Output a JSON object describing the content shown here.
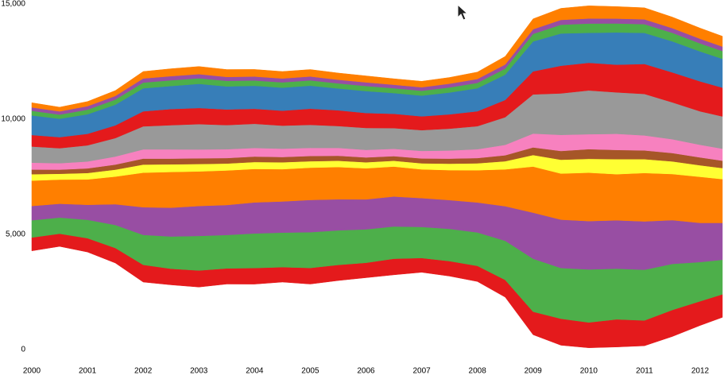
{
  "chart_data": {
    "type": "streamgraph",
    "x": [
      2000,
      2000.5,
      2001,
      2001.5,
      2002,
      2002.5,
      2003,
      2003.5,
      2004,
      2004.5,
      2005,
      2005.5,
      2006,
      2006.5,
      2007,
      2007.5,
      2008,
      2008.5,
      2009,
      2009.5,
      2010,
      2010.5,
      2011,
      2011.5,
      2012,
      2012.4
    ],
    "xlim": [
      2000,
      2012.43
    ],
    "xticks": [
      2000,
      2001,
      2002,
      2003,
      2004,
      2005,
      2006,
      2007,
      2008,
      2009,
      2010,
      2011,
      2012
    ],
    "ylim": [
      0,
      15000
    ],
    "yticks": [
      0,
      {
        "value": 5000,
        "label": "5,000"
      },
      {
        "value": 10000,
        "label": "10,000"
      },
      {
        "value": 15000,
        "label": "15,000"
      }
    ],
    "grid": false,
    "series": [
      {
        "color": "#e41a1c",
        "values": [
          580,
          550,
          600,
          650,
          750,
          700,
          720,
          680,
          700,
          650,
          700,
          680,
          650,
          700,
          620,
          650,
          680,
          750,
          1000,
          1150,
          1100,
          1200,
          1100,
          1150,
          1050,
          1000
        ]
      },
      {
        "color": "#4daf4a",
        "values": [
          750,
          700,
          800,
          1000,
          1300,
          1400,
          1500,
          1450,
          1500,
          1500,
          1550,
          1500,
          1450,
          1400,
          1350,
          1400,
          1450,
          1700,
          2300,
          2200,
          2300,
          2200,
          2200,
          2000,
          1700,
          1500
        ]
      },
      {
        "color": "#984ea3",
        "values": [
          620,
          600,
          650,
          900,
          1200,
          1250,
          1300,
          1300,
          1350,
          1350,
          1400,
          1350,
          1300,
          1300,
          1250,
          1250,
          1300,
          1500,
          2000,
          2100,
          2100,
          2100,
          2100,
          1900,
          1700,
          1600
        ]
      },
      {
        "color": "#ff7f00",
        "values": [
          1100,
          1050,
          1100,
          1200,
          1500,
          1550,
          1500,
          1500,
          1450,
          1400,
          1400,
          1400,
          1350,
          1300,
          1250,
          1300,
          1400,
          1600,
          2000,
          2000,
          2100,
          2000,
          2100,
          2000,
          2000,
          1900
        ]
      },
      {
        "color": "#ffff33",
        "values": [
          280,
          250,
          280,
          300,
          350,
          330,
          320,
          300,
          300,
          300,
          280,
          270,
          260,
          250,
          260,
          280,
          300,
          350,
          500,
          600,
          600,
          650,
          600,
          550,
          500,
          480
        ]
      },
      {
        "color": "#a65628",
        "values": [
          200,
          180,
          200,
          220,
          260,
          250,
          250,
          240,
          240,
          230,
          230,
          220,
          210,
          200,
          210,
          220,
          230,
          260,
          330,
          380,
          420,
          400,
          380,
          360,
          340,
          320
        ]
      },
      {
        "color": "#f781bf",
        "values": [
          300,
          280,
          300,
          350,
          400,
          400,
          380,
          380,
          370,
          360,
          350,
          340,
          330,
          320,
          330,
          350,
          380,
          450,
          600,
          700,
          650,
          700,
          650,
          600,
          550,
          520
        ]
      },
      {
        "color": "#999999",
        "values": [
          700,
          650,
          700,
          800,
          1000,
          1050,
          1100,
          1050,
          1050,
          1000,
          1000,
          950,
          950,
          900,
          900,
          950,
          1000,
          1200,
          1700,
          1800,
          1900,
          1800,
          1800,
          1600,
          1450,
          1400
        ]
      },
      {
        "color": "#e41a1c",
        "values": [
          500,
          480,
          500,
          550,
          650,
          700,
          700,
          680,
          650,
          650,
          700,
          680,
          650,
          620,
          600,
          620,
          650,
          750,
          1000,
          1200,
          1200,
          1200,
          1300,
          1300,
          1300,
          1250
        ]
      },
      {
        "color": "#377eb8",
        "values": [
          850,
          800,
          850,
          900,
          1000,
          1000,
          1050,
          1000,
          1000,
          1000,
          1000,
          950,
          950,
          900,
          900,
          950,
          1000,
          1100,
          1300,
          1400,
          1300,
          1400,
          1350,
          1350,
          1300,
          1250
        ]
      },
      {
        "color": "#4daf4a",
        "values": [
          200,
          180,
          200,
          220,
          250,
          250,
          240,
          240,
          230,
          230,
          230,
          220,
          220,
          210,
          210,
          220,
          230,
          260,
          330,
          380,
          400,
          390,
          380,
          370,
          350,
          340
        ]
      },
      {
        "color": "#984ea3",
        "values": [
          150,
          140,
          150,
          160,
          180,
          180,
          180,
          170,
          170,
          170,
          170,
          160,
          160,
          150,
          150,
          160,
          170,
          180,
          200,
          210,
          220,
          210,
          210,
          200,
          200,
          190
        ]
      },
      {
        "color": "#ff7f00",
        "values": [
          200,
          180,
          200,
          230,
          300,
          320,
          330,
          320,
          310,
          300,
          300,
          290,
          280,
          260,
          260,
          270,
          300,
          350,
          450,
          500,
          550,
          520,
          500,
          480,
          460,
          450
        ]
      }
    ]
  }
}
